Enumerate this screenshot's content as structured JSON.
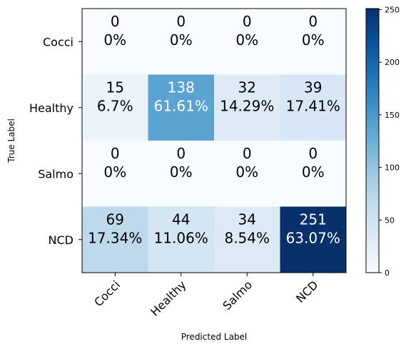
{
  "chart_data": {
    "type": "heatmap",
    "title": "",
    "xlabel": "Predicted Label",
    "ylabel": "True Label",
    "x_categories": [
      "Cocci",
      "Healthy",
      "Salmo",
      "NCD"
    ],
    "y_categories": [
      "Cocci",
      "Healthy",
      "Salmo",
      "NCD"
    ],
    "values": [
      [
        0,
        0,
        0,
        0
      ],
      [
        15,
        138,
        32,
        39
      ],
      [
        0,
        0,
        0,
        0
      ],
      [
        69,
        44,
        34,
        251
      ]
    ],
    "percent_labels": [
      [
        "0%",
        "0%",
        "0%",
        "0%"
      ],
      [
        "6.7%",
        "61.61%",
        "14.29%",
        "17.41%"
      ],
      [
        "0%",
        "0%",
        "0%",
        "0%"
      ],
      [
        "17.34%",
        "11.06%",
        "8.54%",
        "63.07%"
      ]
    ],
    "colormap": "Blues",
    "color_range": [
      0,
      251
    ],
    "colorbar_ticks": [
      0,
      50,
      100,
      150,
      200,
      250
    ],
    "colors": {
      "low": "#f7fbff",
      "high": "#08306b"
    }
  }
}
